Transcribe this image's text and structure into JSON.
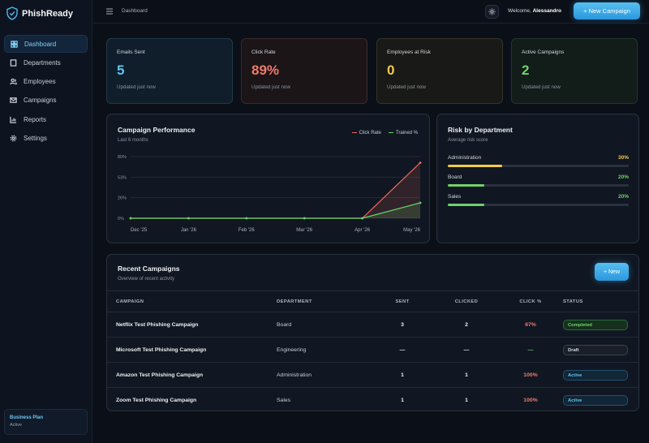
{
  "brand": {
    "name": "PhishReady"
  },
  "nav": [
    {
      "label": "Dashboard",
      "icon": "dashboard-icon",
      "active": true
    },
    {
      "label": "Departments",
      "icon": "building-icon"
    },
    {
      "label": "Employees",
      "icon": "users-icon"
    },
    {
      "label": "Campaigns",
      "icon": "mail-icon"
    },
    {
      "label": "Reports",
      "icon": "chart-icon"
    },
    {
      "label": "Settings",
      "icon": "gear-icon"
    }
  ],
  "plan": {
    "name": "Business Plan",
    "status": "Active"
  },
  "header": {
    "breadcrumb": "Dashboard",
    "welcome_prefix": "Welcome,",
    "user_name": "Alessandro",
    "cta_label": "+ New Campaign"
  },
  "stats": [
    {
      "title": "Emails Sent",
      "value": "5",
      "sub": "Updated just now",
      "color": "#5ec4f0"
    },
    {
      "title": "Click Rate",
      "value": "89%",
      "sub": "Updated just now",
      "color": "#f07a6a"
    },
    {
      "title": "Employees at Risk",
      "value": "0",
      "sub": "Updated just now",
      "color": "#f2c94c"
    },
    {
      "title": "Active Campaigns",
      "value": "2",
      "sub": "Updated just now",
      "color": "#6fd36a"
    }
  ],
  "performance": {
    "title": "Campaign Performance",
    "subtitle": "Last 6 months",
    "legend": [
      "Click Rate",
      "Trained %"
    ]
  },
  "chart_data": {
    "type": "line",
    "title": "Campaign Performance",
    "x": [
      "Dec '25",
      "Jan '26",
      "Feb '26",
      "Mar '26",
      "Apr '26",
      "May '26"
    ],
    "yticks": [
      "80%",
      "53%",
      "26%",
      "0%"
    ],
    "ylim": [
      0,
      80
    ],
    "grid": true,
    "legend_position": "top-right",
    "series": [
      {
        "name": "Click Rate",
        "color": "#f06a5e",
        "values": [
          0,
          0,
          0,
          0,
          0,
          72
        ]
      },
      {
        "name": "Trained %",
        "color": "#67d46a",
        "values": [
          0,
          0,
          0,
          0,
          0,
          20
        ]
      }
    ]
  },
  "risk": {
    "title": "Risk by Department",
    "subtitle": "Average risk score",
    "rows": [
      {
        "label": "Administration",
        "pct": "30%",
        "fraction": 0.3,
        "color": "#f2c94c"
      },
      {
        "label": "Board",
        "pct": "20%",
        "fraction": 0.2,
        "color": "#6fd36a"
      },
      {
        "label": "Sales",
        "pct": "20%",
        "fraction": 0.2,
        "color": "#6fd36a"
      }
    ]
  },
  "recent": {
    "title": "Recent Campaigns",
    "subtitle": "Overview of recent activity",
    "new_label": "+ New",
    "columns": [
      "CAMPAIGN",
      "DEPARTMENT",
      "SENT",
      "CLICKED",
      "CLICK %",
      "STATUS"
    ],
    "rows": [
      {
        "name": "Netflix Test Phishing Campaign",
        "department": "Board",
        "sent": "3",
        "clicked": "2",
        "click_pct": "67%",
        "status": "Completed"
      },
      {
        "name": "Microsoft Test Phishing Campaign",
        "department": "Engineering",
        "sent": "—",
        "clicked": "—",
        "click_pct": "—",
        "status": "Draft"
      },
      {
        "name": "Amazon Test Phishing Campaign",
        "department": "Administration",
        "sent": "1",
        "clicked": "1",
        "click_pct": "100%",
        "status": "Active"
      },
      {
        "name": "Zoom Test Phishing Campaign",
        "department": "Sales",
        "sent": "1",
        "clicked": "1",
        "click_pct": "100%",
        "status": "Active"
      }
    ]
  }
}
